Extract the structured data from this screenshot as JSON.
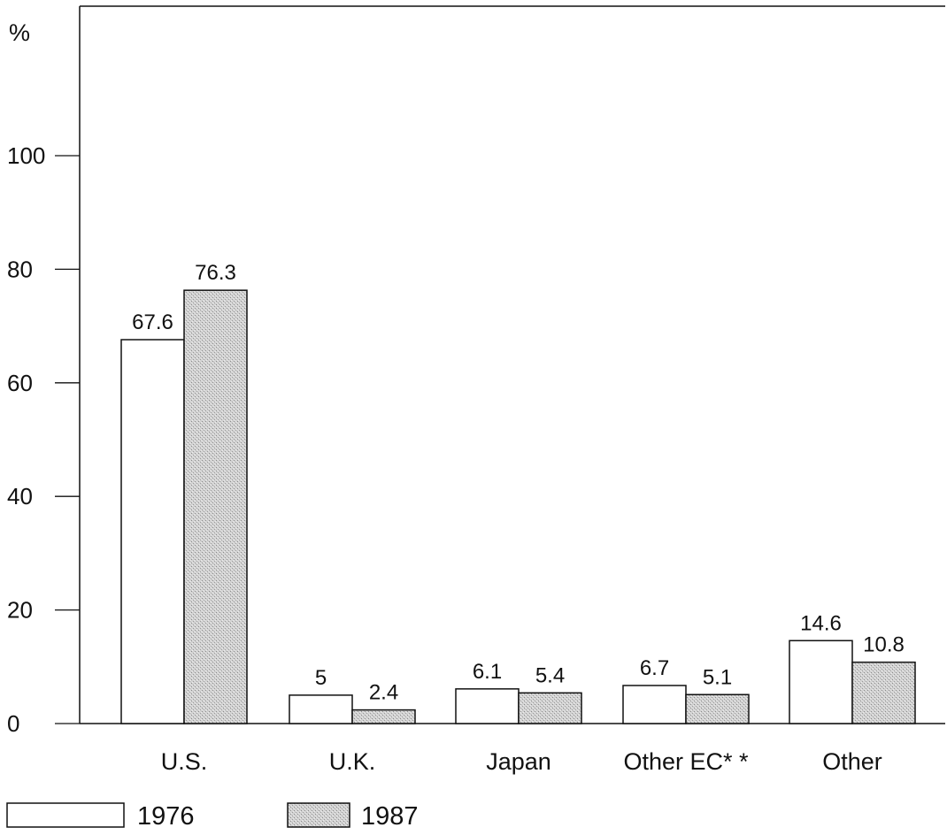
{
  "chart_data": {
    "type": "bar",
    "unit_label": "%",
    "categories": [
      "U.S.",
      "U.K.",
      "Japan",
      "Other EC* *",
      "Other"
    ],
    "series": [
      {
        "name": "1976",
        "values": [
          67.6,
          5,
          6.1,
          6.7,
          14.6
        ],
        "labels": [
          "67.6",
          "5",
          "6.1",
          "6.7",
          "14.6"
        ],
        "fill": "#ffffff"
      },
      {
        "name": "1987",
        "values": [
          76.3,
          2.4,
          5.4,
          5.1,
          10.8
        ],
        "labels": [
          "76.3",
          "2.4",
          "5.4",
          "5.1",
          "10.8"
        ],
        "fill": "#c8c8c8"
      }
    ],
    "ylim": [
      0,
      100
    ],
    "yticks": [
      0,
      20,
      40,
      60,
      80,
      100
    ],
    "ytick_labels": [
      "0",
      "20",
      "40",
      "60",
      "80",
      "100"
    ],
    "grid": false,
    "legend_position": "bottom-left"
  }
}
